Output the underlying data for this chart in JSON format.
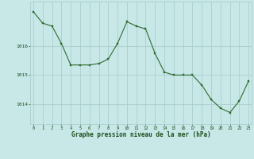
{
  "x": [
    0,
    1,
    2,
    3,
    4,
    5,
    6,
    7,
    8,
    9,
    10,
    11,
    12,
    13,
    14,
    15,
    16,
    17,
    18,
    19,
    20,
    21,
    22,
    23
  ],
  "y": [
    1017.2,
    1016.8,
    1016.7,
    1016.1,
    1015.35,
    1015.35,
    1015.35,
    1015.4,
    1015.55,
    1016.1,
    1016.85,
    1016.7,
    1016.6,
    1015.75,
    1015.1,
    1015.0,
    1015.0,
    1015.0,
    1014.65,
    1014.15,
    1013.85,
    1013.7,
    1014.1,
    1014.8
  ],
  "line_color": "#2d6a2d",
  "marker_color": "#2d6a2d",
  "bg_color": "#c8e8e8",
  "grid_color": "#aacece",
  "xlabel": "Graphe pression niveau de la mer (hPa)",
  "xlabel_color": "#1a4d1a",
  "tick_color": "#1a4d1a",
  "ytick_labels": [
    "1014",
    "1015",
    "1016"
  ],
  "ytick_values": [
    1014,
    1015,
    1016
  ],
  "ylim": [
    1013.3,
    1017.55
  ],
  "xlim": [
    -0.3,
    23.3
  ],
  "figsize": [
    3.2,
    2.0
  ],
  "dpi": 100
}
